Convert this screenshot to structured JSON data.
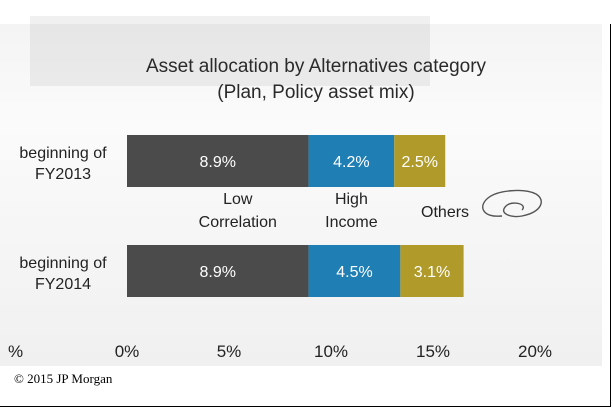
{
  "chart_data": {
    "type": "bar",
    "stacked": true,
    "orientation": "horizontal",
    "title": "Asset allocation by Alternatives category",
    "subtitle": "(Plan, Policy asset mix)",
    "categories": [
      "beginning of FY2013",
      "beginning of FY2014"
    ],
    "series": [
      {
        "name": "Low Correlation",
        "values": [
          8.9,
          8.9
        ],
        "color": "#4b4b4b"
      },
      {
        "name": "High Income",
        "values": [
          4.2,
          4.5
        ],
        "color": "#1f7fb5"
      },
      {
        "name": "Others",
        "values": [
          2.5,
          3.1
        ],
        "color": "#b09a2a"
      }
    ],
    "data_labels": [
      [
        "8.9%",
        "4.2%",
        "2.5%"
      ],
      [
        "8.9%",
        "4.5%",
        "3.1%"
      ]
    ],
    "xlim": [
      0,
      20
    ],
    "x_ticks": [
      0,
      5,
      10,
      15,
      20
    ],
    "x_tick_labels": [
      "0%",
      "5%",
      "10%",
      "15%",
      "20%"
    ],
    "edge_tick_label": "%",
    "legend_placement": "between bars",
    "grid": false
  },
  "credit": "© 2015 JP Morgan"
}
